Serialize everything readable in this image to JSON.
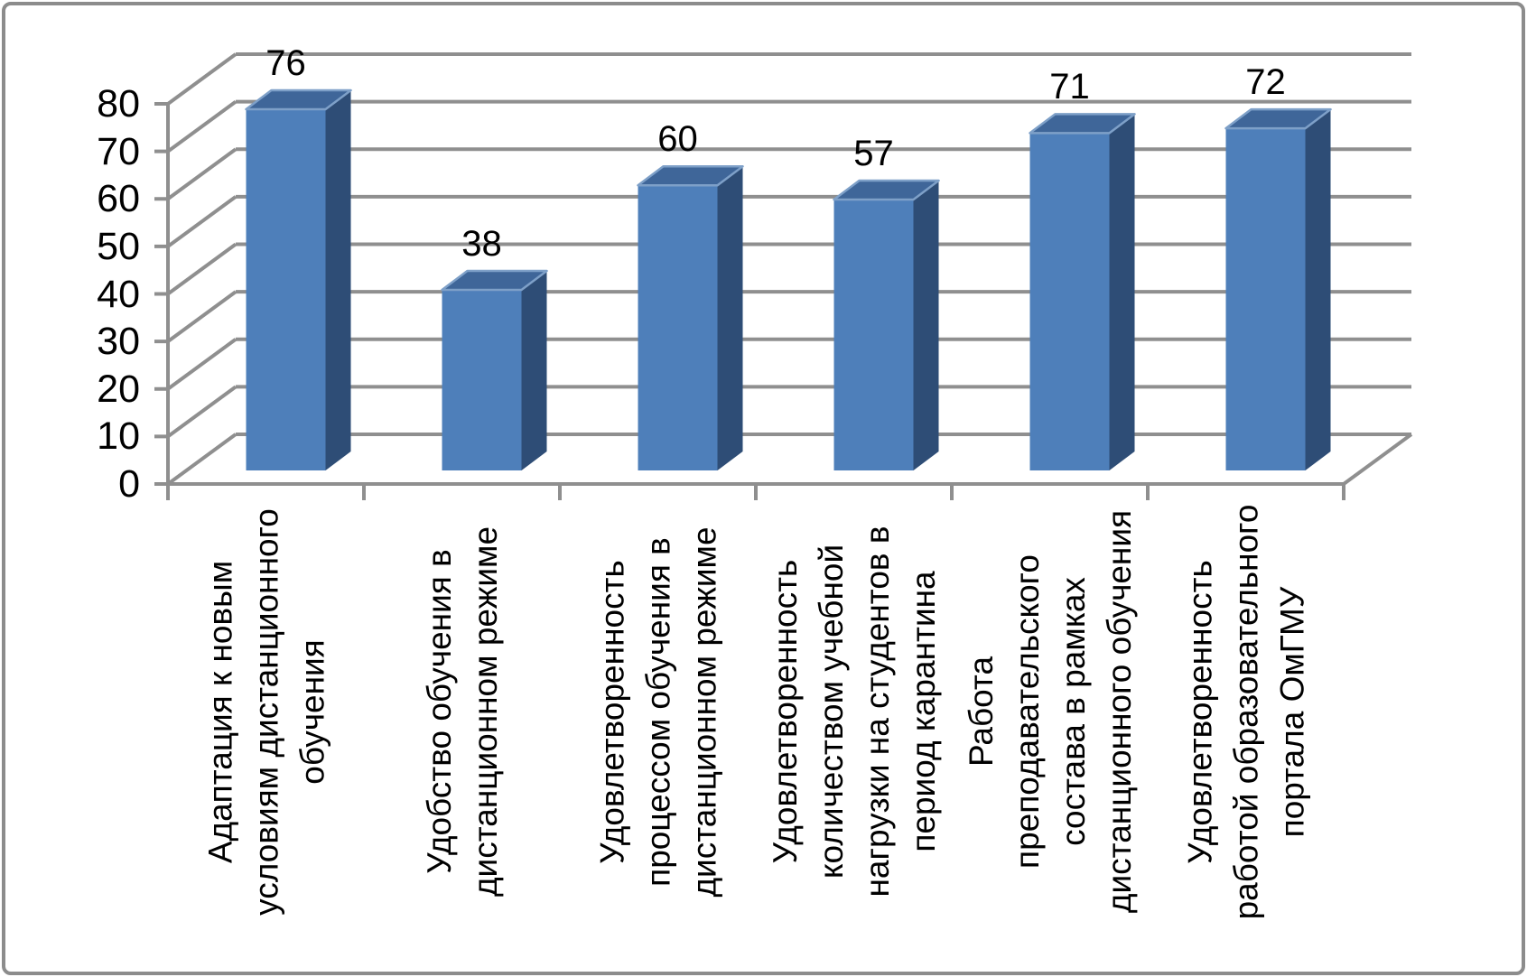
{
  "chart_data": {
    "type": "bar",
    "projection": "3d",
    "title": "",
    "categories": [
      "Адаптация к новым\nусловиям дистанционного\nобучения",
      "Удобство обучения в\nдистанционном режиме",
      "Удовлетворенность\nпроцессом обучения в\nдистанционном режиме",
      "Удовлетворенность\nколичеством учебной\nнагрузки на студентов в\nпериод карантина",
      "Работа\nпреподавательского\nсостава в рамках\nдистанционного обучения",
      "Удовлетворенность\nработой образовательного\nпортала ОмГМУ"
    ],
    "values": [
      76,
      38,
      60,
      57,
      71,
      72
    ],
    "data_labels": [
      "76",
      "38",
      "60",
      "57",
      "71",
      "72"
    ],
    "y_ticks": [
      "80",
      "70",
      "60",
      "50",
      "40",
      "30",
      "20",
      "10",
      "0"
    ],
    "ylim": [
      0,
      80
    ],
    "y_tick_step": 10,
    "grid": true,
    "legend_position": "none",
    "xlabel": "",
    "ylabel": "",
    "colors": {
      "bar_front": "#4E7FBA",
      "bar_top": "#3F6699",
      "bar_side": "#2E4D76",
      "bar_edge_highlight": "#7EA0C8",
      "axis_and_grid": "#8F8F8F",
      "text": "#000000",
      "background": "#FFFFFF",
      "frame_border": "#8C8C8C"
    }
  }
}
